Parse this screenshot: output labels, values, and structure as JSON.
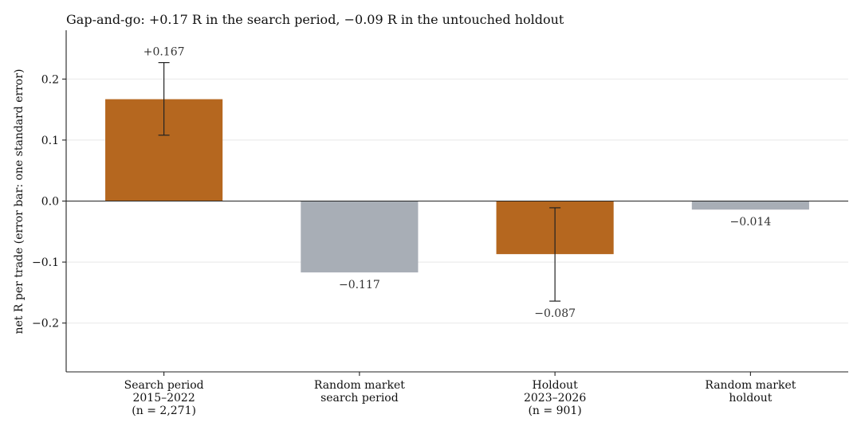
{
  "chart_data": {
    "type": "bar",
    "title": "Gap-and-go: +0.17 R in the search period, −0.09 R in the untouched holdout",
    "ylabel": "net R per trade (error bar: one standard error)",
    "xlabel": "",
    "ylim": [
      -0.28,
      0.28
    ],
    "yticks": [
      0.2,
      0.1,
      0.0,
      -0.1,
      -0.2
    ],
    "ytick_labels": [
      "0.2",
      "0.1",
      "0.0",
      "−0.1",
      "−0.2"
    ],
    "grid": "horizontal",
    "categories": [
      [
        "Search period",
        "2015–2022",
        "(n = 2,271)"
      ],
      [
        "Random market",
        "search period"
      ],
      [
        "Holdout",
        "2023–2026",
        "(n = 901)"
      ],
      [
        "Random market",
        "holdout"
      ]
    ],
    "values": [
      0.167,
      -0.117,
      -0.087,
      -0.014
    ],
    "value_labels": [
      "+0.167",
      "−0.117",
      "−0.087",
      "−0.014"
    ],
    "errors": [
      [
        0.108,
        0.227
      ],
      null,
      [
        -0.164,
        -0.011
      ],
      null
    ],
    "colors": [
      "#b5671f",
      "#a8aeb6",
      "#b5671f",
      "#a8aeb6"
    ]
  }
}
